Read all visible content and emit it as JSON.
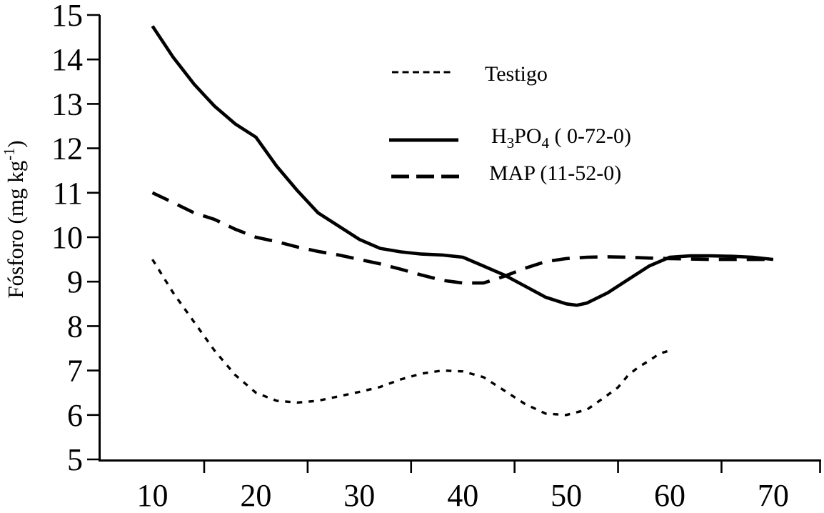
{
  "figure": {
    "background_color": "#ffffff",
    "ink_color": "#000000"
  },
  "chart_data": {
    "type": "line",
    "title": "",
    "xlabel": "",
    "ylabel": "Fósforo (mg kg-1)",
    "ylabel_rich": [
      {
        "t": "Fósforo (mg kg"
      },
      {
        "t": "-1",
        "sup": true
      },
      {
        "t": ")"
      }
    ],
    "xlim": [
      5,
      75
    ],
    "ylim": [
      5,
      15
    ],
    "grid": false,
    "legend_position": "upper-center-inside",
    "x_axis": {
      "labeled_ticks": [
        10,
        20,
        30,
        40,
        50,
        60,
        70
      ],
      "minor_ticks": [
        15,
        25,
        35,
        45,
        55,
        65
      ],
      "axis_end_tick": true
    },
    "y_axis": {
      "ticks": [
        5,
        6,
        7,
        8,
        9,
        10,
        11,
        12,
        13,
        14,
        15
      ]
    },
    "series": [
      {
        "name": "Testigo",
        "label_rich": [
          {
            "t": "Testigo"
          }
        ],
        "line_style": "dotted",
        "color": "#000000",
        "points": [
          [
            10,
            9.5
          ],
          [
            12,
            8.75
          ],
          [
            14,
            8.1
          ],
          [
            16,
            7.45
          ],
          [
            18,
            6.9
          ],
          [
            20,
            6.5
          ],
          [
            22,
            6.32
          ],
          [
            24,
            6.28
          ],
          [
            26,
            6.32
          ],
          [
            28,
            6.42
          ],
          [
            30,
            6.52
          ],
          [
            32,
            6.63
          ],
          [
            34,
            6.8
          ],
          [
            36,
            6.93
          ],
          [
            38,
            7.0
          ],
          [
            40,
            6.98
          ],
          [
            42,
            6.85
          ],
          [
            44,
            6.55
          ],
          [
            46,
            6.25
          ],
          [
            48,
            6.03
          ],
          [
            50,
            6.0
          ],
          [
            52,
            6.12
          ],
          [
            54,
            6.45
          ],
          [
            55,
            6.62
          ],
          [
            56,
            6.9
          ],
          [
            57,
            7.08
          ],
          [
            58,
            7.22
          ],
          [
            59,
            7.38
          ],
          [
            60,
            7.45
          ]
        ]
      },
      {
        "name": "H3PO4 ( 0-72-0)",
        "label_rich": [
          {
            "t": "H"
          },
          {
            "t": "3",
            "sub": true
          },
          {
            "t": "PO"
          },
          {
            "t": "4",
            "sub": true
          },
          {
            "t": " ( 0-72-0)"
          }
        ],
        "line_style": "solid",
        "color": "#000000",
        "points": [
          [
            10,
            14.75
          ],
          [
            12,
            14.05
          ],
          [
            14,
            13.45
          ],
          [
            15,
            13.2
          ],
          [
            16,
            12.95
          ],
          [
            18,
            12.55
          ],
          [
            20,
            12.25
          ],
          [
            22,
            11.6
          ],
          [
            24,
            11.05
          ],
          [
            26,
            10.55
          ],
          [
            28,
            10.25
          ],
          [
            30,
            9.95
          ],
          [
            32,
            9.75
          ],
          [
            34,
            9.67
          ],
          [
            36,
            9.62
          ],
          [
            38,
            9.6
          ],
          [
            40,
            9.55
          ],
          [
            42,
            9.35
          ],
          [
            44,
            9.15
          ],
          [
            46,
            8.9
          ],
          [
            48,
            8.65
          ],
          [
            50,
            8.5
          ],
          [
            51,
            8.47
          ],
          [
            52,
            8.52
          ],
          [
            54,
            8.75
          ],
          [
            56,
            9.05
          ],
          [
            58,
            9.35
          ],
          [
            60,
            9.55
          ],
          [
            62,
            9.58
          ],
          [
            64,
            9.58
          ],
          [
            66,
            9.57
          ],
          [
            68,
            9.55
          ],
          [
            70,
            9.5
          ]
        ]
      },
      {
        "name": "MAP (11-52-0)",
        "label_rich": [
          {
            "t": "MAP (11-52-0)"
          }
        ],
        "line_style": "dashed",
        "color": "#000000",
        "points": [
          [
            10,
            11.0
          ],
          [
            12,
            10.78
          ],
          [
            14,
            10.55
          ],
          [
            16,
            10.4
          ],
          [
            18,
            10.18
          ],
          [
            20,
            10.0
          ],
          [
            22,
            9.9
          ],
          [
            24,
            9.78
          ],
          [
            26,
            9.68
          ],
          [
            28,
            9.6
          ],
          [
            30,
            9.5
          ],
          [
            32,
            9.4
          ],
          [
            34,
            9.28
          ],
          [
            36,
            9.15
          ],
          [
            38,
            9.03
          ],
          [
            40,
            8.97
          ],
          [
            42,
            8.97
          ],
          [
            44,
            9.12
          ],
          [
            46,
            9.3
          ],
          [
            48,
            9.45
          ],
          [
            50,
            9.52
          ],
          [
            52,
            9.55
          ],
          [
            54,
            9.56
          ],
          [
            56,
            9.55
          ],
          [
            58,
            9.53
          ],
          [
            60,
            9.52
          ],
          [
            62,
            9.51
          ],
          [
            64,
            9.5
          ],
          [
            66,
            9.5
          ],
          [
            68,
            9.5
          ],
          [
            70,
            9.5
          ]
        ]
      }
    ]
  }
}
